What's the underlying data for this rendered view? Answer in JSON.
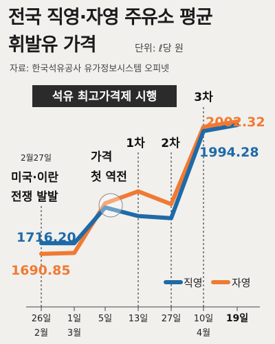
{
  "header": {
    "title_line1": "전국 직영·자영 주유소 평균",
    "title_line2": "휘발유 가격",
    "unit": "단위: ℓ당 원",
    "source": "자료: 한국석유공사 유가정보시스템 오피넷"
  },
  "banner": {
    "text": "석유 최고가격제 시행"
  },
  "annotations": {
    "war_date": "2월27일",
    "war_line1": "미국·이란",
    "war_line2": "전쟁 발발",
    "cross_line1": "가격",
    "cross_line2": "첫 역전",
    "phase1": "1차",
    "phase2": "2차",
    "phase3": "3차"
  },
  "labels": {
    "direct_start": "1716.20",
    "self_start": "1690.85",
    "direct_end": "1994.28",
    "self_end": "2002.32"
  },
  "colors": {
    "direct": "#1e6aa8",
    "self": "#f07a32",
    "banner": "#2b2b2b"
  },
  "chart_data": {
    "type": "line",
    "x": [
      "2월 26일",
      "3월 1일",
      "5일",
      "13일",
      "27일",
      "4월 10일",
      "19일"
    ],
    "x_ticks": [
      {
        "day": "26일",
        "month": "2월",
        "bold": false
      },
      {
        "day": "1일",
        "month": "3월",
        "bold": false
      },
      {
        "day": "5일",
        "month": "",
        "bold": false
      },
      {
        "day": "13일",
        "month": "",
        "bold": false
      },
      {
        "day": "27일",
        "month": "",
        "bold": false
      },
      {
        "day": "10일",
        "month": "4월",
        "bold": false
      },
      {
        "day": "19일",
        "month": "",
        "bold": true
      }
    ],
    "series": [
      {
        "name": "직영",
        "color": "#1e6aa8",
        "values": [
          1716.2,
          1716,
          1800,
          1780,
          1775,
          1980,
          1994.28
        ]
      },
      {
        "name": "자영",
        "color": "#f07a32",
        "values": [
          1690.85,
          1693,
          1810,
          1838,
          1808,
          1990,
          2002.32
        ]
      }
    ],
    "ylim": [
      1650,
      2030
    ],
    "grid": false,
    "legend_position": "bottom-right",
    "phase_markers_at": [
      "13일",
      "27일",
      "4월 10일"
    ]
  }
}
